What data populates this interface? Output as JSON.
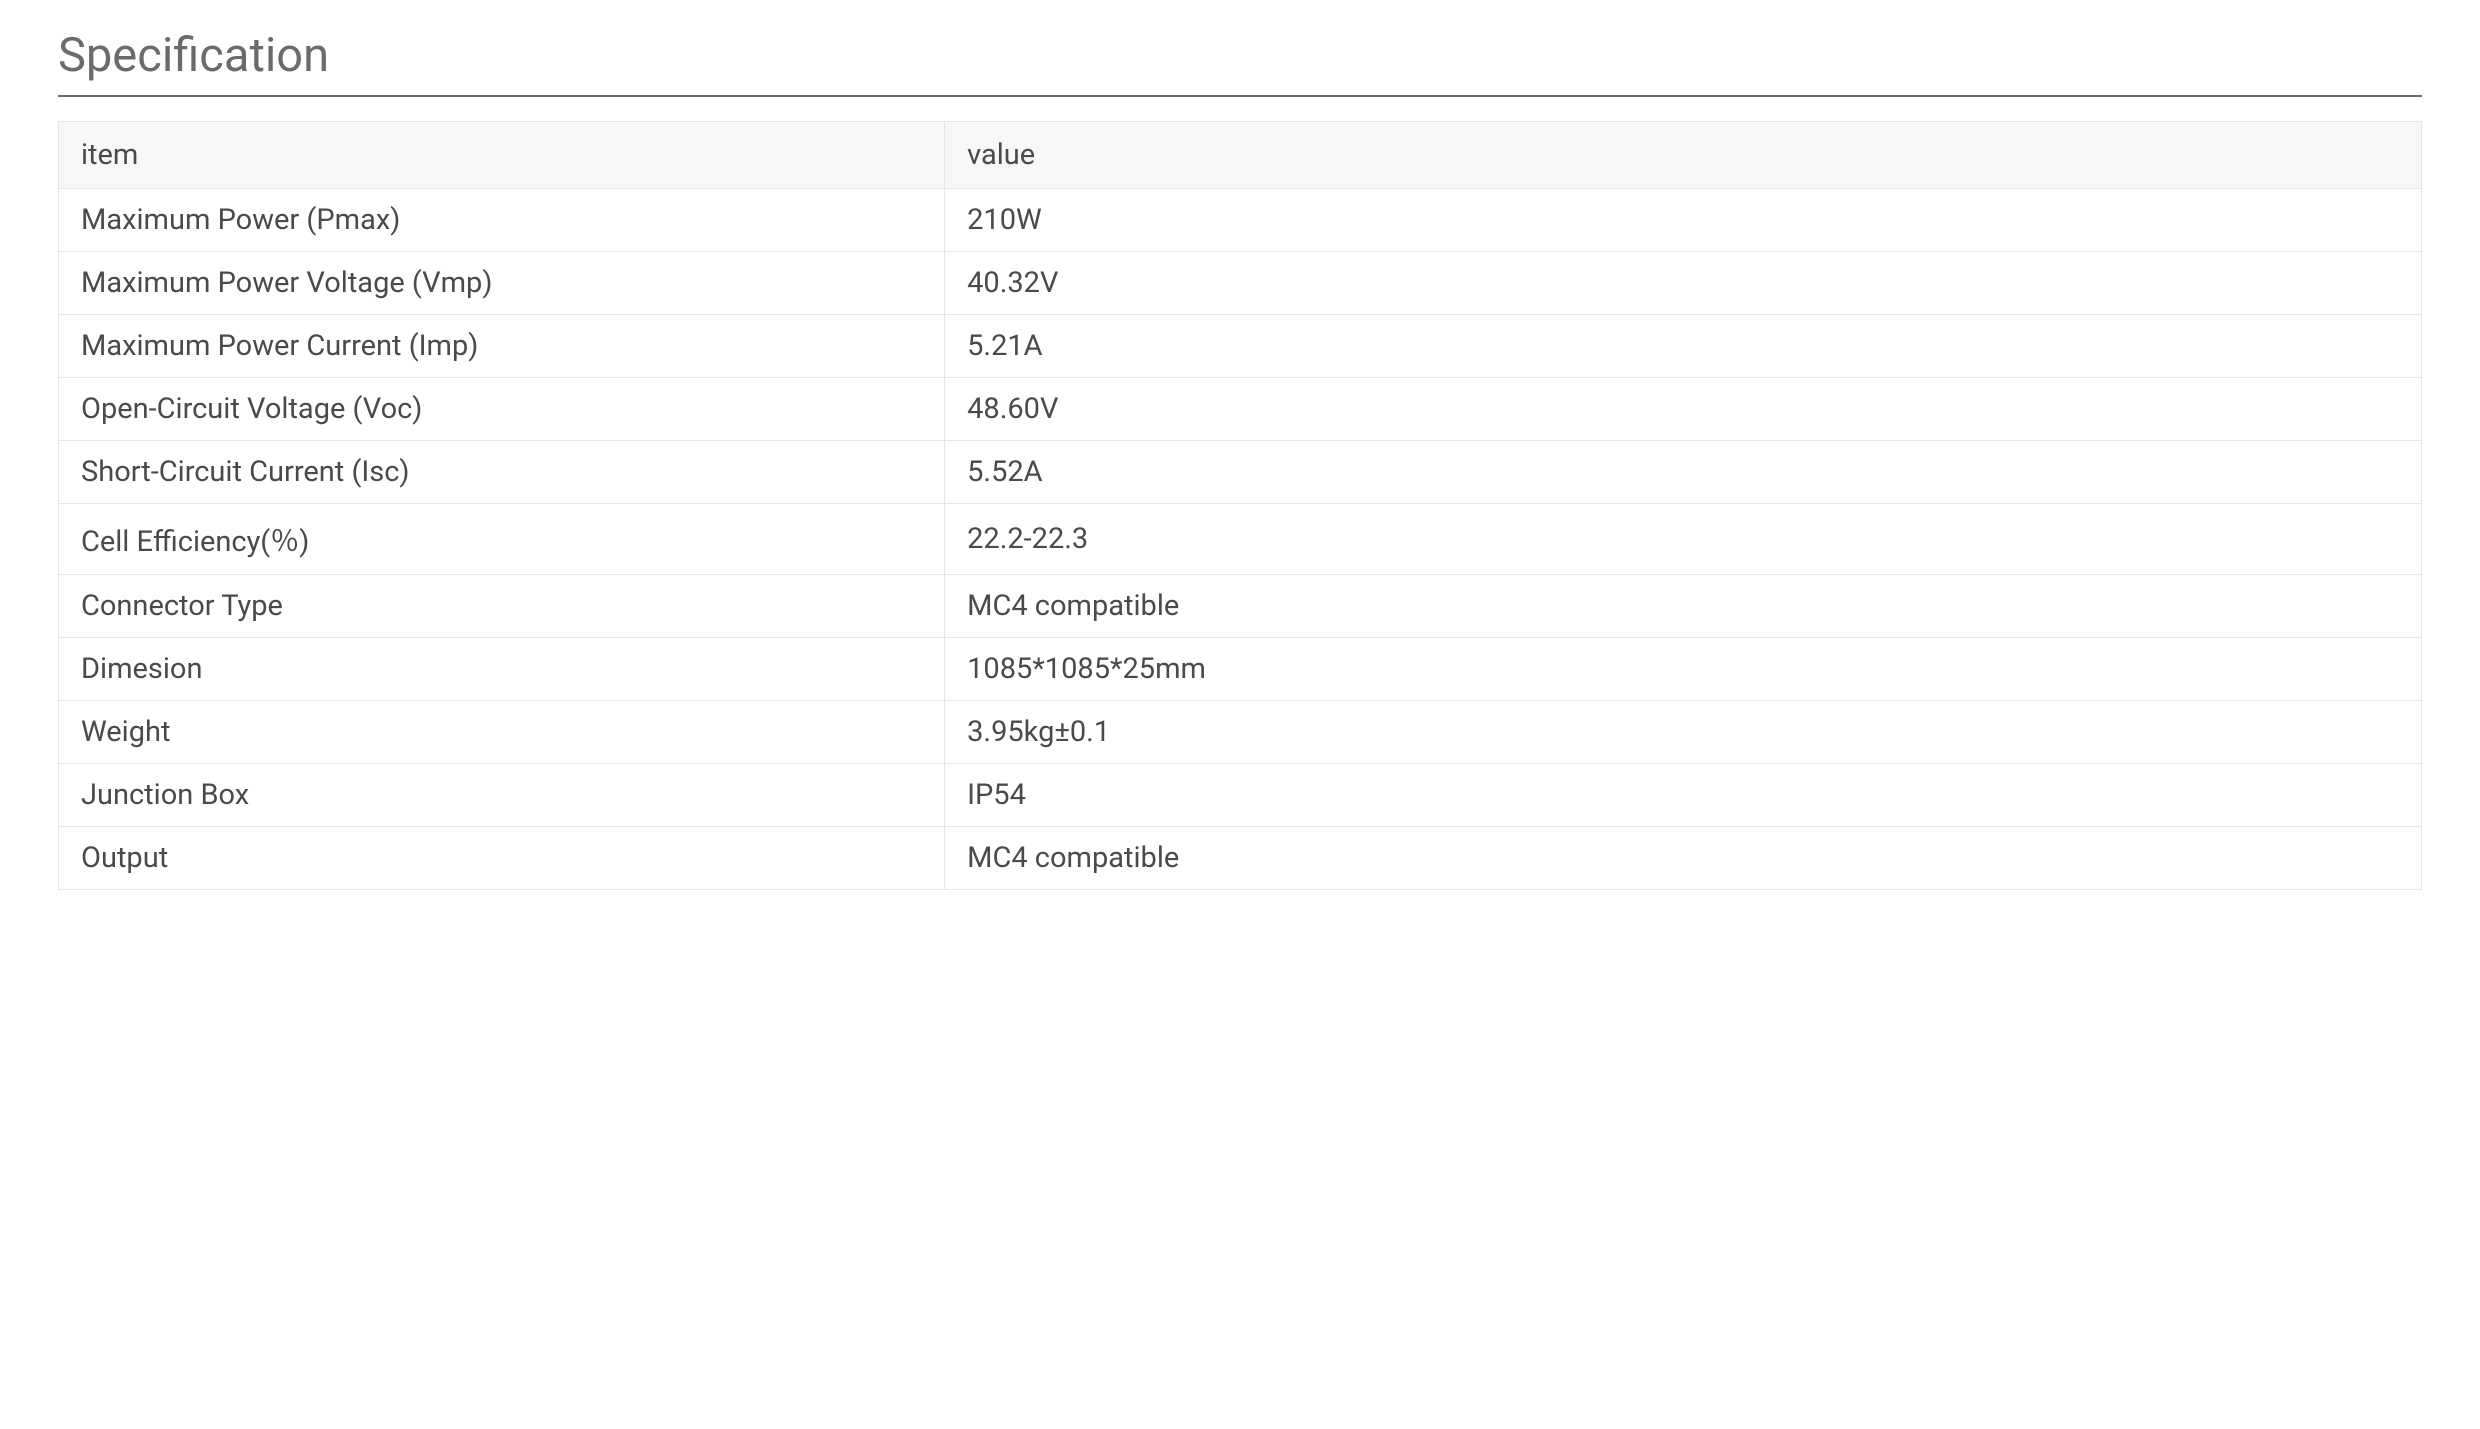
{
  "title": "Specification",
  "table": {
    "columns": [
      "item",
      "value"
    ],
    "rows": [
      [
        "Maximum Power (Pmax)",
        "210W"
      ],
      [
        "Maximum Power Voltage (Vmp)",
        "40.32V"
      ],
      [
        "Maximum Power Current (Imp)",
        "5.21A"
      ],
      [
        "Open-Circuit Voltage (Voc)",
        "48.60V"
      ],
      [
        "Short-Circuit Current (Isc)",
        "5.52A"
      ],
      [
        "Cell Efficiency(％)",
        "22.2-22.3"
      ],
      [
        "Connector Type",
        "MC4 compatible"
      ],
      [
        "Dimesion",
        "1085*1085*25mm"
      ],
      [
        "Weight",
        "3.95kg±0.1"
      ],
      [
        " Junction Box",
        "IP54"
      ],
      [
        "Output",
        "MC4 compatible"
      ]
    ],
    "column_widths": [
      "37.5%",
      "62.5%"
    ],
    "header_bg": "#f7f7f7",
    "border_color": "#e5e5e5",
    "text_color": "#4a4a4a",
    "font_size": 29,
    "title_color": "#6b6b6b",
    "title_fontsize": 47,
    "title_underline_color": "#696969"
  }
}
